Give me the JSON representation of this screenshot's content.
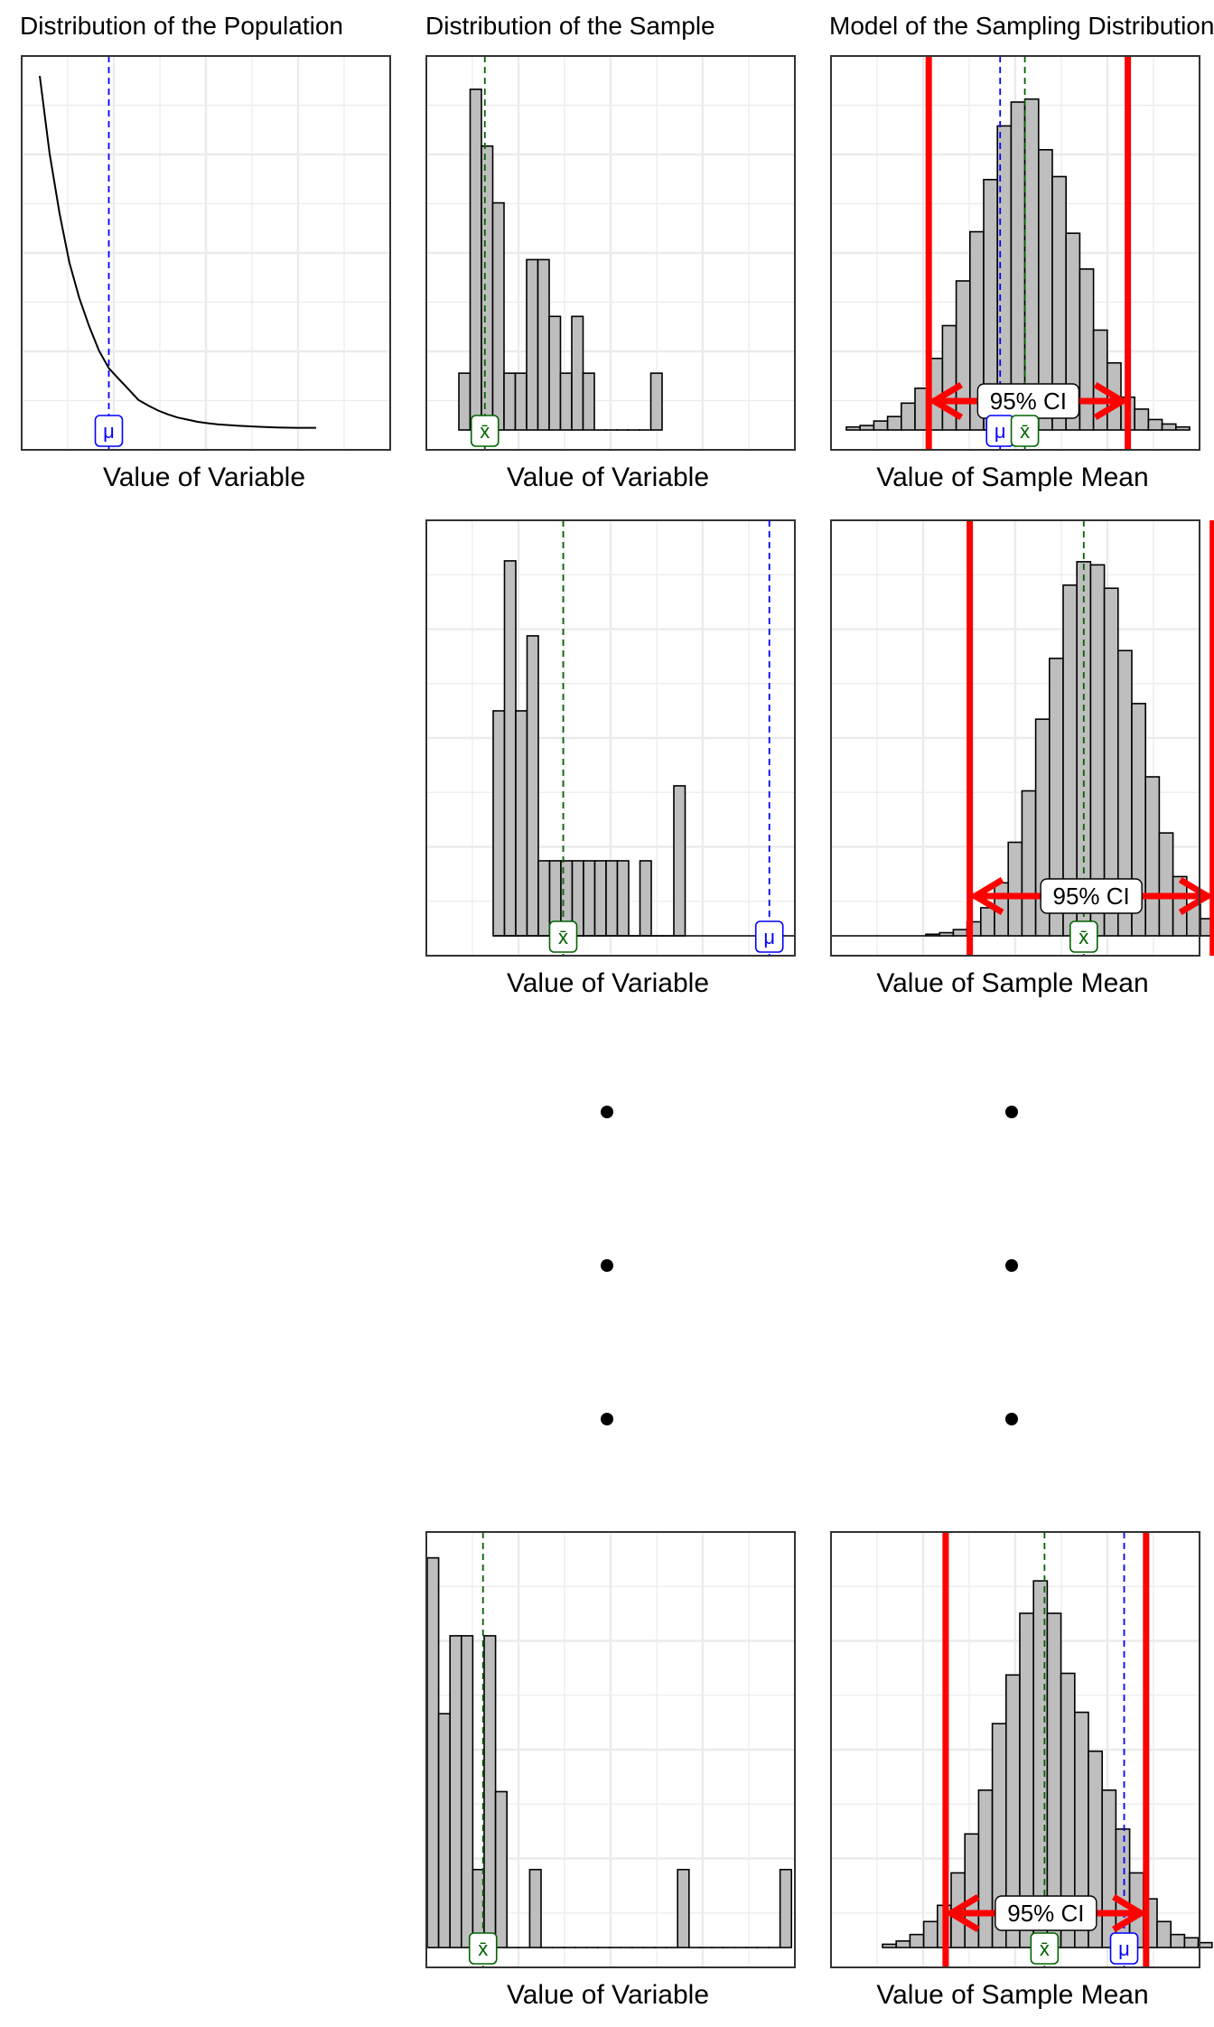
{
  "titles": {
    "population": "Distribution of the Population",
    "sample": "Distribution of the Sample",
    "sampling": "Model of the Sampling Distribution"
  },
  "labels": {
    "mu": "μ",
    "xbar": "x̄",
    "ci": "95% CI",
    "x_variable": "Value of Variable",
    "x_sample_mean": "Value of Sample Mean"
  },
  "colors": {
    "bar_fill": "#bebebe",
    "mu_line": "#0000ff",
    "xbar_line": "#006400",
    "ci": "#ff0000",
    "grid": "#ebebeb"
  },
  "chart_data": [
    {
      "id": "population",
      "type": "line",
      "title": "Distribution of the Population",
      "xlabel": "Value of Variable",
      "curve": "exponential decay",
      "x": [
        0,
        0.5,
        1,
        1.5,
        2,
        2.5,
        3,
        3.5,
        4,
        4.5,
        5,
        5.5,
        6,
        6.5,
        7,
        7.5,
        8,
        8.5,
        9,
        9.5,
        10,
        11,
        12,
        13,
        14
      ],
      "y": [
        1,
        0.78,
        0.61,
        0.47,
        0.37,
        0.29,
        0.22,
        0.17,
        0.14,
        0.11,
        0.08,
        0.064,
        0.05,
        0.039,
        0.03,
        0.024,
        0.018,
        0.014,
        0.011,
        0.009,
        0.007,
        0.004,
        0.002,
        0.001,
        0.001
      ],
      "xlim": [
        -1,
        18
      ],
      "ylim": [
        0,
        1.05
      ],
      "mu": 3.5,
      "grid": true
    },
    {
      "id": "sample_1",
      "type": "bar",
      "title": "Distribution of the Sample",
      "xlabel": "Value of Variable",
      "values": [
        1,
        6,
        5,
        4,
        1,
        1,
        3,
        3,
        2,
        1,
        2,
        1,
        0,
        0,
        0,
        0,
        0,
        1
      ],
      "xlim": [
        -1,
        18
      ],
      "ylim": [
        0,
        6.3
      ],
      "xbar": 2.3,
      "grid": true
    },
    {
      "id": "sampling_1",
      "type": "bar",
      "title": "Model of the Sampling Distribution",
      "xlabel": "Value of Sample Mean",
      "values": [
        2,
        3,
        6,
        9,
        18,
        28,
        48,
        70,
        100,
        133,
        168,
        204,
        220,
        222,
        188,
        170,
        132,
        108,
        67,
        45,
        22,
        14,
        7,
        4,
        2
      ],
      "ylim": [
        0,
        240
      ],
      "xbar_bin": 13,
      "mu_bin": 11.2,
      "ci_bins": [
        6,
        20.5
      ],
      "grid": true
    },
    {
      "id": "sample_2",
      "type": "bar",
      "xlabel": "Value of Variable",
      "values": [
        3,
        5,
        3,
        4,
        1,
        1,
        1,
        1,
        1,
        1,
        1,
        1,
        0,
        1,
        0,
        0,
        2
      ],
      "xlim": [
        -1,
        18
      ],
      "ylim": [
        0,
        5.3
      ],
      "xbar": 6.2,
      "grid": true
    },
    {
      "id": "sampling_2",
      "type": "bar",
      "xlabel": "Value of Sample Mean",
      "values": [
        1,
        2,
        4,
        9,
        18,
        34,
        60,
        93,
        139,
        178,
        225,
        240,
        238,
        223,
        183,
        149,
        102,
        66,
        38,
        20,
        11,
        5,
        2
      ],
      "ylim": [
        0,
        255
      ],
      "xbar_bin": 11.5,
      "mu_bin": -11.4,
      "ci_bins": [
        3.2,
        20.9
      ],
      "grid": true
    },
    {
      "id": "sample_3",
      "type": "bar",
      "xlabel": "Value of Variable",
      "values": [
        5,
        3,
        4,
        4,
        1,
        4,
        2,
        0,
        0,
        1,
        0,
        0,
        0,
        0,
        0,
        0,
        0,
        0,
        0,
        0,
        0,
        0,
        1,
        0,
        0,
        0,
        0,
        0,
        0,
        0,
        0,
        1
      ],
      "xlim": [
        0,
        32.5
      ],
      "ylim": [
        0,
        5.1
      ],
      "xbar": 4.9,
      "grid": true
    },
    {
      "id": "sampling_3",
      "type": "bar",
      "xlabel": "Value of Sample Mean",
      "values": [
        2,
        4,
        8,
        16,
        26,
        46,
        70,
        97,
        138,
        168,
        206,
        226,
        206,
        169,
        145,
        121,
        97,
        73,
        46,
        30,
        16,
        8,
        6,
        3
      ],
      "ylim": [
        0,
        245
      ],
      "xbar_bin": 11.8,
      "mu_bin": 17.6,
      "ci_bins": [
        4.6,
        19.2
      ],
      "grid": true
    }
  ]
}
